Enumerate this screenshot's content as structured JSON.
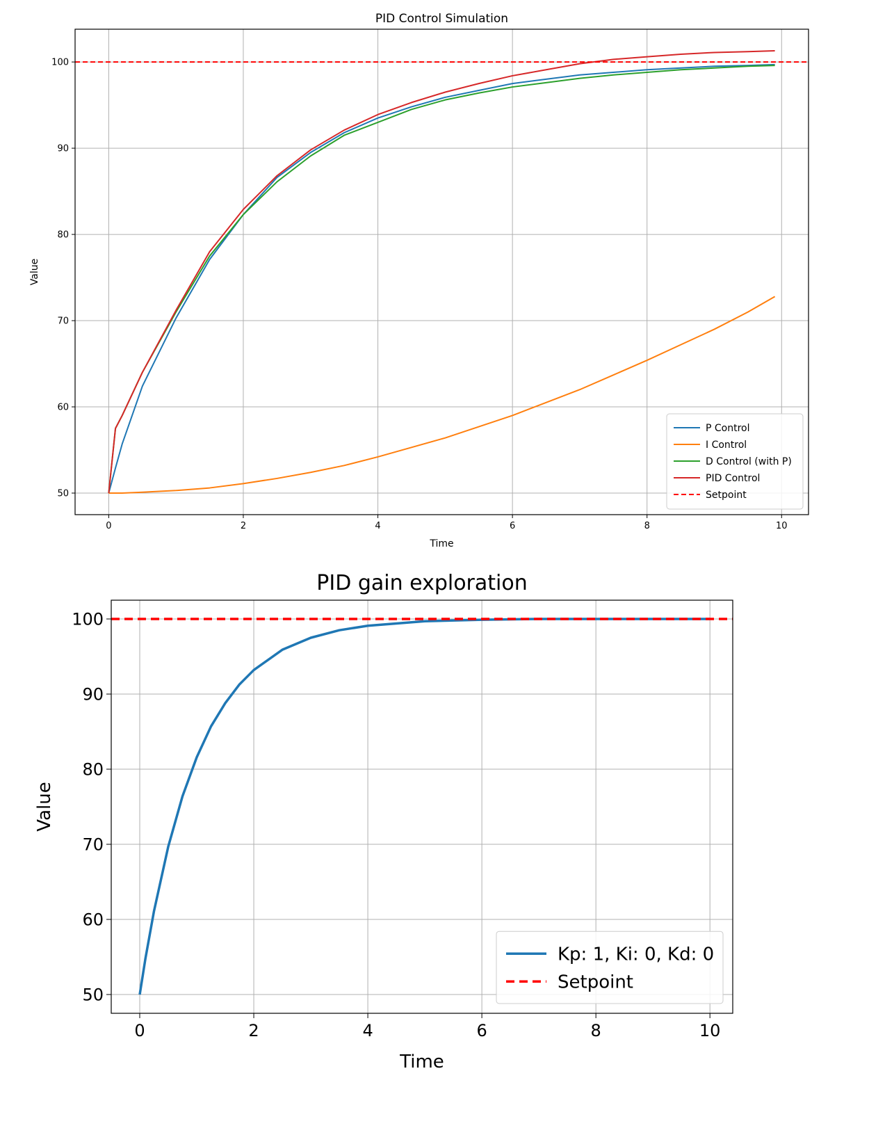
{
  "chart_data": [
    {
      "type": "line",
      "title": "PID Control Simulation",
      "xlabel": "Time",
      "ylabel": "Value",
      "xlim": [
        -0.5,
        10.4
      ],
      "ylim": [
        47.5,
        103.8
      ],
      "xticks": [
        0,
        2,
        4,
        6,
        8,
        10
      ],
      "yticks": [
        50,
        60,
        70,
        80,
        90,
        100
      ],
      "grid": true,
      "legend_position": "lower right",
      "x": [
        0,
        0.1,
        0.2,
        0.5,
        1,
        1.5,
        2,
        2.5,
        3,
        3.5,
        4,
        4.5,
        5,
        5.5,
        6,
        6.5,
        7,
        7.5,
        8,
        8.5,
        9,
        9.5,
        9.9
      ],
      "series": [
        {
          "name": "P Control",
          "color": "#1f77b4",
          "values": [
            50,
            52.9,
            55.7,
            62.4,
            70.3,
            77.1,
            82.3,
            86.6,
            89.5,
            91.8,
            93.5,
            94.8,
            95.9,
            96.7,
            97.5,
            98.0,
            98.5,
            98.8,
            99.1,
            99.3,
            99.5,
            99.6,
            99.7
          ]
        },
        {
          "name": "I Control",
          "color": "#ff7f0e",
          "values": [
            50,
            50.0,
            50.0,
            50.1,
            50.3,
            50.6,
            51.1,
            51.7,
            52.4,
            53.2,
            54.2,
            55.3,
            56.4,
            57.7,
            59.0,
            60.5,
            62.0,
            63.7,
            65.4,
            67.2,
            69.0,
            71.0,
            72.8
          ]
        },
        {
          "name": "D Control (with P)",
          "color": "#2ca02c",
          "values": [
            50,
            57.5,
            59.0,
            64.0,
            71.0,
            77.5,
            82.3,
            86.1,
            89.1,
            91.5,
            93.0,
            94.5,
            95.6,
            96.4,
            97.1,
            97.6,
            98.1,
            98.5,
            98.8,
            99.1,
            99.3,
            99.5,
            99.6
          ]
        },
        {
          "name": "PID Control",
          "color": "#d62728",
          "values": [
            50,
            57.5,
            59.0,
            64.0,
            71.2,
            78.0,
            82.9,
            86.8,
            89.8,
            92.1,
            93.9,
            95.3,
            96.5,
            97.5,
            98.4,
            99.1,
            99.8,
            100.3,
            100.6,
            100.9,
            101.1,
            101.2,
            101.3
          ]
        },
        {
          "name": "Setpoint",
          "color": "#ff0000",
          "dashed": true,
          "values": "constant",
          "constant": 100
        }
      ]
    },
    {
      "type": "line",
      "title": "PID gain exploration",
      "xlabel": "Time",
      "ylabel": "Value",
      "xlim": [
        -0.5,
        10.4
      ],
      "ylim": [
        47.5,
        102.5
      ],
      "xticks": [
        0,
        2,
        4,
        6,
        8,
        10
      ],
      "yticks": [
        50,
        60,
        70,
        80,
        90,
        100
      ],
      "grid": true,
      "legend_position": "lower right",
      "x": [
        0,
        0.1,
        0.25,
        0.5,
        0.75,
        1,
        1.25,
        1.5,
        1.75,
        2,
        2.5,
        3,
        3.5,
        4,
        4.5,
        5,
        6,
        7,
        8,
        9,
        10
      ],
      "series": [
        {
          "name": "Kp: 1, Ki: 0, Kd: 0",
          "color": "#1f77b4",
          "values": [
            50,
            54.8,
            61.1,
            69.7,
            76.4,
            81.6,
            85.7,
            88.8,
            91.3,
            93.2,
            95.9,
            97.5,
            98.5,
            99.1,
            99.4,
            99.7,
            99.9,
            100.0,
            100.0,
            100.0,
            100.0
          ]
        },
        {
          "name": "Setpoint",
          "color": "#ff0000",
          "dashed": true,
          "values": "constant",
          "constant": 100
        }
      ]
    }
  ]
}
